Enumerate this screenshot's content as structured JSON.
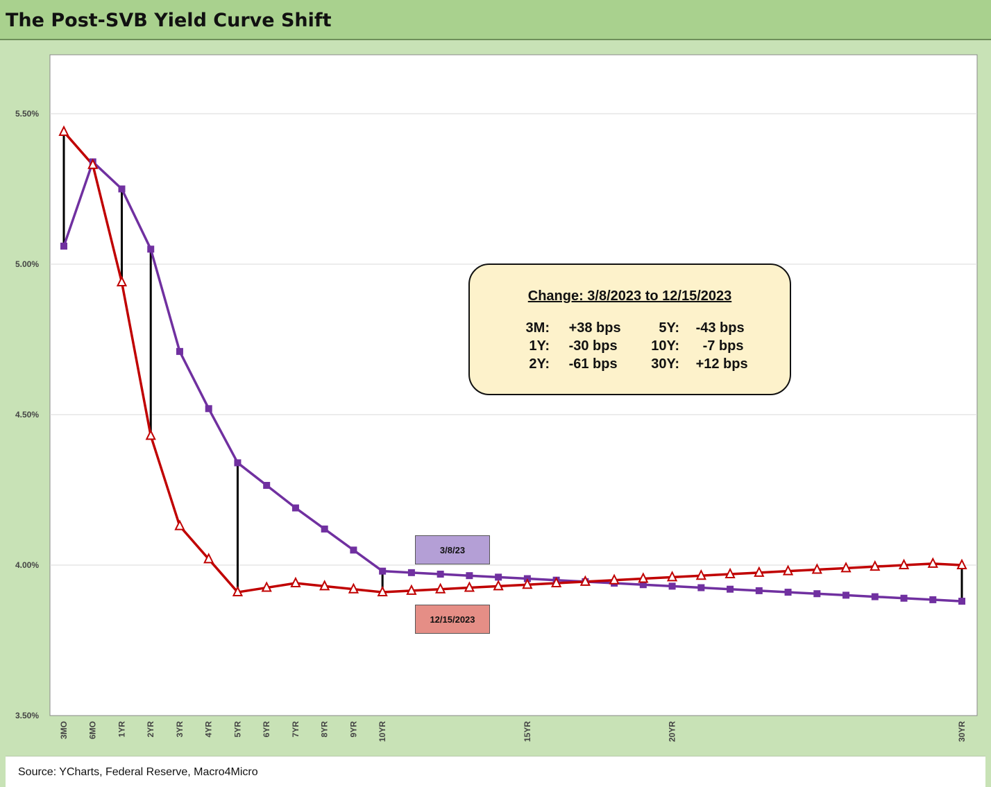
{
  "header": {
    "title": "The Post-SVB Yield Curve Shift"
  },
  "footer": {
    "source": "Source: YCharts, Federal Reserve, Macro4Micro"
  },
  "colors": {
    "series_a": "#7030a0",
    "series_b": "#c00000",
    "diff_line": "#000000",
    "tag_a": "#b49fd6",
    "tag_b": "#e58e86"
  },
  "annotation": {
    "title": "Change: 3/8/2023 to 12/15/2023",
    "items": [
      {
        "label": "3M:",
        "value": "+38 bps"
      },
      {
        "label": "5Y:",
        "value": "-43 bps"
      },
      {
        "label": "1Y:",
        "value": "-30 bps"
      },
      {
        "label": "10Y:",
        "value": "-7 bps"
      },
      {
        "label": "2Y:",
        "value": "-61 bps"
      },
      {
        "label": "30Y:",
        "value": "+12 bps"
      }
    ]
  },
  "chart_data": {
    "type": "line",
    "title": "The Post-SVB Yield Curve Shift",
    "ylim": [
      3.5,
      5.75
    ],
    "yticks": [
      "3.50%",
      "4.00%",
      "4.50%",
      "5.00%",
      "5.50%"
    ],
    "ytick_values": [
      3.5,
      4.0,
      4.5,
      5.0,
      5.5
    ],
    "x_tick_labels": [
      "3MO",
      "6MO",
      "1YR",
      "2YR",
      "3YR",
      "4YR",
      "5YR",
      "6YR",
      "7YR",
      "8YR",
      "9YR",
      "10YR",
      "",
      "",
      "",
      "",
      "15YR",
      "",
      "",
      "",
      "",
      "20YR",
      "",
      "",
      "",
      "",
      "",
      "",
      "",
      "",
      "",
      "30YR"
    ],
    "grid": true,
    "diff_markers_at": [
      0,
      2,
      3,
      6,
      11,
      31
    ],
    "series": [
      {
        "name": "3/8/23",
        "marker": "square",
        "values": [
          5.06,
          5.34,
          5.25,
          5.05,
          4.71,
          4.52,
          4.34,
          4.265,
          4.19,
          4.12,
          4.05,
          3.98,
          3.975,
          3.97,
          3.965,
          3.96,
          3.955,
          3.95,
          3.945,
          3.94,
          3.935,
          3.93,
          3.925,
          3.92,
          3.915,
          3.91,
          3.905,
          3.9,
          3.895,
          3.89,
          3.885,
          3.88
        ]
      },
      {
        "name": "12/15/2023",
        "marker": "triangle",
        "values": [
          5.44,
          5.33,
          4.94,
          4.43,
          4.13,
          4.02,
          3.91,
          3.925,
          3.94,
          3.93,
          3.92,
          3.91,
          3.915,
          3.92,
          3.925,
          3.93,
          3.935,
          3.94,
          3.945,
          3.95,
          3.955,
          3.96,
          3.965,
          3.97,
          3.975,
          3.98,
          3.985,
          3.99,
          3.995,
          4.0,
          4.005,
          4.0
        ]
      }
    ]
  }
}
